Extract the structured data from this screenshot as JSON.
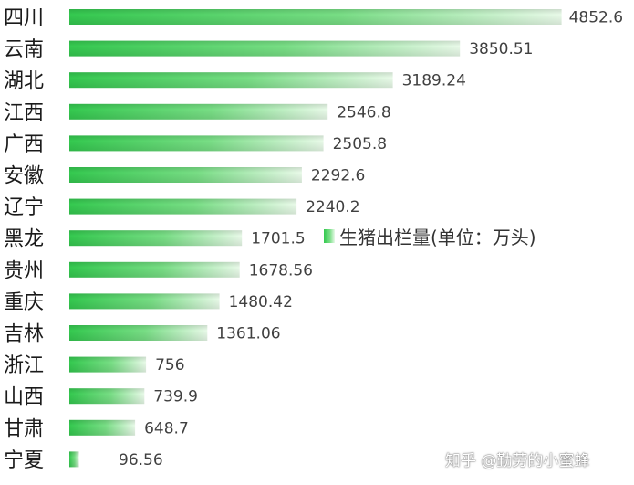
{
  "chart_data": {
    "type": "bar",
    "orientation": "horizontal",
    "categories": [
      "四川",
      "云南",
      "湖北",
      "江西",
      "广西",
      "安徽",
      "辽宁",
      "黑龙",
      "贵州",
      "重庆",
      "吉林",
      "浙江",
      "山西",
      "甘肃",
      "宁夏"
    ],
    "values": [
      4852.6,
      3850.51,
      3189.24,
      2546.8,
      2505.8,
      2292.6,
      2240.2,
      1701.5,
      1678.56,
      1480.42,
      1361.06,
      756,
      739.9,
      648.7,
      96.56
    ],
    "value_labels": [
      "4852.6",
      "3850.51",
      "3189.24",
      "2546.8",
      "2505.8",
      "2292.6",
      "2240.2",
      "1701.5",
      "1678.56",
      "1480.42",
      "1361.06",
      "756",
      "739.9",
      "648.7",
      "96.56"
    ],
    "series": [
      {
        "name": "生猪出栏量(单位：万头)"
      }
    ],
    "legend_position": "right",
    "grid": false,
    "bar_color": "#3fcf5a",
    "bar_color_light": "#e6f9e6"
  },
  "watermark": "知乎 @勤劳的小蜜蜂"
}
